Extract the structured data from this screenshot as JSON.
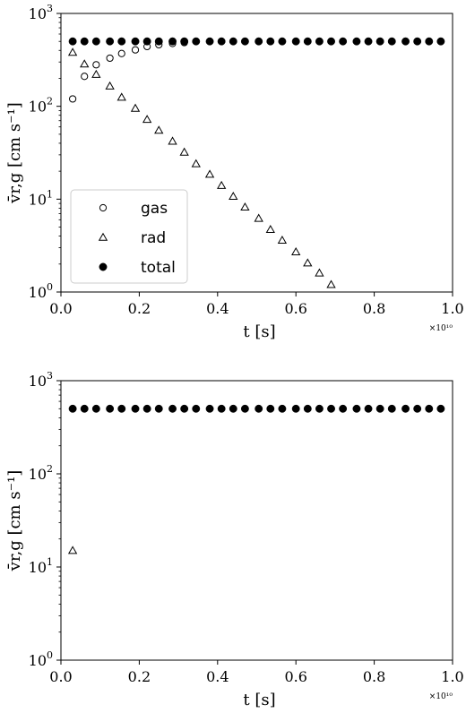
{
  "chart_data": [
    {
      "type": "scatter",
      "x_scale": "linear",
      "y_scale": "log",
      "xlim": [
        0.0,
        1.0
      ],
      "ylim": [
        1,
        1000
      ],
      "x_offset_label": "×10¹⁰",
      "xlabel": "t [s]",
      "ylabel": "v̄r,g [cm s⁻¹]",
      "x_ticks": [
        "0.0",
        "0.2",
        "0.4",
        "0.6",
        "0.8",
        "1.0"
      ],
      "y_ticks": [
        {
          "base": "10",
          "exp": "0"
        },
        {
          "base": "10",
          "exp": "1"
        },
        {
          "base": "10",
          "exp": "2"
        },
        {
          "base": "10",
          "exp": "3"
        }
      ],
      "legend": {
        "position": "lower-left",
        "entries": [
          "gas",
          "rad",
          "total"
        ]
      },
      "series": [
        {
          "name": "gas",
          "marker": "open-circle",
          "x": [
            0.03,
            0.06,
            0.09,
            0.125,
            0.155,
            0.19,
            0.22,
            0.25,
            0.285,
            0.315
          ],
          "y": [
            120,
            210,
            280,
            330,
            370,
            405,
            440,
            460,
            475,
            485
          ]
        },
        {
          "name": "rad",
          "marker": "open-triangle",
          "x": [
            0.03,
            0.06,
            0.09,
            0.125,
            0.155,
            0.19,
            0.22,
            0.25,
            0.285,
            0.315,
            0.345,
            0.38,
            0.41,
            0.44,
            0.47,
            0.505,
            0.535,
            0.565,
            0.6,
            0.63,
            0.66,
            0.69
          ],
          "y": [
            380,
            285,
            220,
            165,
            125,
            95,
            72,
            55,
            42,
            32,
            24,
            18.5,
            14,
            10.7,
            8.2,
            6.2,
            4.7,
            3.6,
            2.7,
            2.05,
            1.6,
            1.2
          ]
        },
        {
          "name": "total",
          "marker": "filled-circle",
          "x": [
            0.03,
            0.06,
            0.09,
            0.125,
            0.155,
            0.19,
            0.22,
            0.25,
            0.285,
            0.315,
            0.345,
            0.38,
            0.41,
            0.44,
            0.47,
            0.505,
            0.535,
            0.565,
            0.6,
            0.63,
            0.66,
            0.69,
            0.72,
            0.755,
            0.785,
            0.815,
            0.845,
            0.88,
            0.91,
            0.94,
            0.97
          ],
          "y": [
            500,
            500,
            500,
            500,
            500,
            500,
            500,
            500,
            500,
            500,
            500,
            500,
            500,
            500,
            500,
            500,
            500,
            500,
            500,
            500,
            500,
            500,
            500,
            500,
            500,
            500,
            500,
            500,
            500,
            500,
            500
          ]
        }
      ]
    },
    {
      "type": "scatter",
      "x_scale": "linear",
      "y_scale": "log",
      "xlim": [
        0.0,
        1.0
      ],
      "ylim": [
        1,
        1000
      ],
      "x_offset_label": "×10¹⁰",
      "xlabel": "t [s]",
      "ylabel": "v̄r,g [cm s⁻¹]",
      "x_ticks": [
        "0.0",
        "0.2",
        "0.4",
        "0.6",
        "0.8",
        "1.0"
      ],
      "y_ticks": [
        {
          "base": "10",
          "exp": "0"
        },
        {
          "base": "10",
          "exp": "1"
        },
        {
          "base": "10",
          "exp": "2"
        },
        {
          "base": "10",
          "exp": "3"
        }
      ],
      "series": [
        {
          "name": "rad",
          "marker": "open-triangle",
          "x": [
            0.03
          ],
          "y": [
            15
          ]
        },
        {
          "name": "total",
          "marker": "filled-circle",
          "x": [
            0.03,
            0.06,
            0.09,
            0.125,
            0.155,
            0.19,
            0.22,
            0.25,
            0.285,
            0.315,
            0.345,
            0.38,
            0.41,
            0.44,
            0.47,
            0.505,
            0.535,
            0.565,
            0.6,
            0.63,
            0.66,
            0.69,
            0.72,
            0.755,
            0.785,
            0.815,
            0.845,
            0.88,
            0.91,
            0.94,
            0.97
          ],
          "y": [
            500,
            500,
            500,
            500,
            500,
            500,
            500,
            500,
            500,
            500,
            500,
            500,
            500,
            500,
            500,
            500,
            500,
            500,
            500,
            500,
            500,
            500,
            500,
            500,
            500,
            500,
            500,
            500,
            500,
            500,
            500
          ]
        }
      ]
    }
  ]
}
